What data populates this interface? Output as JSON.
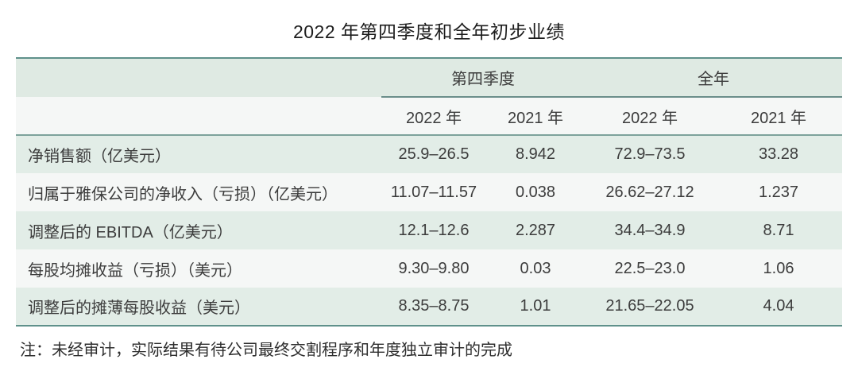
{
  "title": "2022 年第四季度和全年初步业绩",
  "table": {
    "group_headers": [
      "第四季度",
      "全年"
    ],
    "col_headers": [
      "2022 年",
      "2021 年",
      "2022 年",
      "2021 年"
    ],
    "rows": [
      {
        "label": "净销售额（亿美元）",
        "values": [
          "25.9–26.5",
          "8.942",
          "72.9–73.5",
          "33.28"
        ]
      },
      {
        "label": "归属于雅保公司的净收入（亏损）（亿美元）",
        "values": [
          "11.07–11.57",
          "0.038",
          "26.62–27.12",
          "1.237"
        ]
      },
      {
        "label": "调整后的 EBITDA（亿美元）",
        "values": [
          "12.1–12.6",
          "2.287",
          "34.4–34.9",
          "8.71"
        ]
      },
      {
        "label": "每股均摊收益（亏损）（美元）",
        "values": [
          "9.30–9.80",
          "0.03",
          "22.5–23.0",
          "1.06"
        ]
      },
      {
        "label": "调整后的摊薄每股收益（美元）",
        "values": [
          "8.35–8.75",
          "1.01",
          "21.65–22.05",
          "4.04"
        ]
      }
    ]
  },
  "note": "注：未经审计，实际结果有待公司最终交割程序和年度独立审计的完成",
  "colors": {
    "header_band": "#dfeae3",
    "row_green": "#e2ede7",
    "row_white": "#f5f7f6",
    "border_teal": "#5f918b",
    "mid_separator": "#7da29b",
    "group_underline": "#6b8e8a"
  }
}
